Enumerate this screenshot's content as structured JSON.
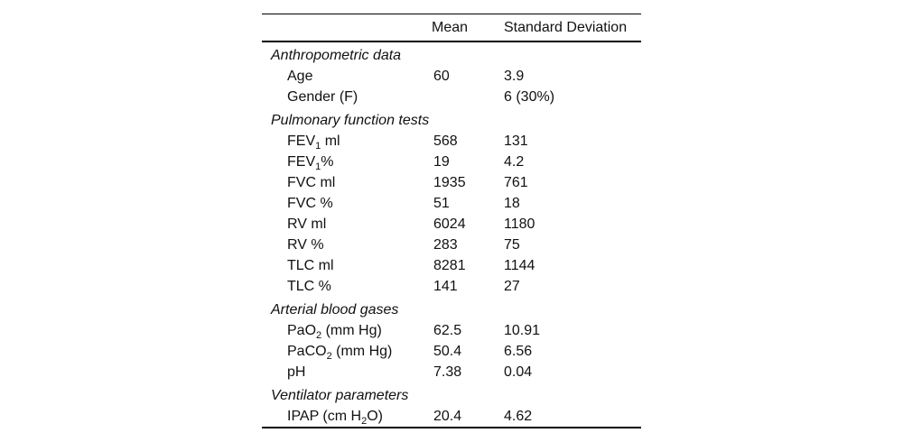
{
  "page": {
    "background": "#ffffff",
    "text_color": "#111111",
    "rule_color": "#000000"
  },
  "table": {
    "header": {
      "label": "",
      "mean": "Mean",
      "sd": "Standard Deviation"
    },
    "sections": [
      {
        "title": "Anthropometric data",
        "rows": [
          {
            "label": [
              {
                "text": "Age"
              }
            ],
            "mean": "60",
            "sd": "3.9"
          },
          {
            "label": [
              {
                "text": "Gender (F)"
              }
            ],
            "mean": "",
            "sd": "6 (30%)"
          }
        ]
      },
      {
        "title": "Pulmonary function tests",
        "rows": [
          {
            "label": [
              {
                "text": "FEV"
              },
              {
                "text": "1",
                "sub": true
              },
              {
                "text": " ml"
              }
            ],
            "mean": "568",
            "sd": "131"
          },
          {
            "label": [
              {
                "text": "FEV"
              },
              {
                "text": "1",
                "sub": true
              },
              {
                "text": "%"
              }
            ],
            "mean": "19",
            "sd": "4.2"
          },
          {
            "label": [
              {
                "text": "FVC ml"
              }
            ],
            "mean": "1935",
            "sd": "761"
          },
          {
            "label": [
              {
                "text": "FVC %"
              }
            ],
            "mean": "51",
            "sd": "18"
          },
          {
            "label": [
              {
                "text": "RV ml"
              }
            ],
            "mean": "6024",
            "sd": "1180"
          },
          {
            "label": [
              {
                "text": "RV %"
              }
            ],
            "mean": "283",
            "sd": "75"
          },
          {
            "label": [
              {
                "text": "TLC ml"
              }
            ],
            "mean": "8281",
            "sd": "1144"
          },
          {
            "label": [
              {
                "text": "TLC %"
              }
            ],
            "mean": "141",
            "sd": "27"
          }
        ]
      },
      {
        "title": "Arterial blood gases",
        "rows": [
          {
            "label": [
              {
                "text": "PaO"
              },
              {
                "text": "2",
                "sub": true
              },
              {
                "text": " (mm Hg)"
              }
            ],
            "mean": "62.5",
            "sd": "10.91"
          },
          {
            "label": [
              {
                "text": "PaCO"
              },
              {
                "text": "2",
                "sub": true
              },
              {
                "text": " (mm Hg)"
              }
            ],
            "mean": "50.4",
            "sd": "6.56"
          },
          {
            "label": [
              {
                "text": "pH"
              }
            ],
            "mean": "7.38",
            "sd": "0.04"
          }
        ]
      },
      {
        "title": "Ventilator parameters",
        "rows": [
          {
            "label": [
              {
                "text": "IPAP (cm H"
              },
              {
                "text": "2",
                "sub": true
              },
              {
                "text": "O)"
              }
            ],
            "mean": "20.4",
            "sd": "4.62"
          }
        ]
      }
    ]
  }
}
